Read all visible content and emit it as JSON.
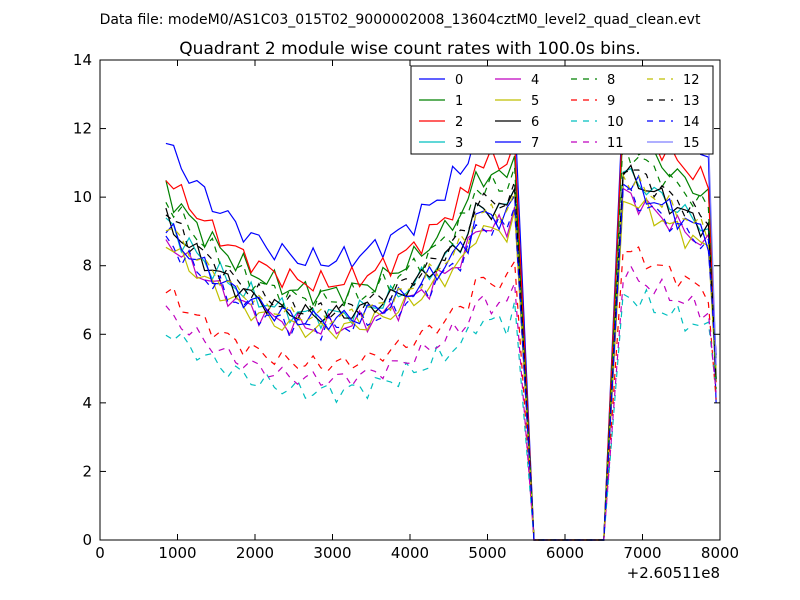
{
  "chart_data": {
    "type": "line",
    "suptitle": "Data file: modeM0/AS1C03_015T02_9000002008_13604cztM0_level2_quad_clean.evt",
    "title": "Quadrant 2 module wise count rates with 100.0s bins.",
    "xlabel": "",
    "ylabel": "",
    "x_offset_label": "+2.60511e8",
    "xlim": [
      0,
      8000
    ],
    "ylim": [
      0,
      14
    ],
    "xticks": [
      0,
      1000,
      2000,
      3000,
      4000,
      5000,
      6000,
      7000,
      8000
    ],
    "yticks": [
      0,
      2,
      4,
      6,
      8,
      10,
      12,
      14
    ],
    "legend_placement": "top-right",
    "legend_columns": 4,
    "segments": [
      {
        "x0": 850,
        "step": 100,
        "count": 46
      },
      {
        "x0": 6750,
        "step": 100,
        "count": 13
      }
    ],
    "gap": {
      "x": [
        5550,
        6550
      ],
      "value": 0
    },
    "series": [
      {
        "name": "0",
        "color": "#0000ff",
        "dash": "solid",
        "base": 11.3,
        "edge": 1.0,
        "scale": 1.0,
        "amp": 0.45,
        "phase": 0.0
      },
      {
        "name": "1",
        "color": "#008000",
        "dash": "solid",
        "base": 10.0,
        "edge": 1.0,
        "scale": 1.0,
        "amp": 0.4,
        "phase": 1.3
      },
      {
        "name": "2",
        "color": "#ff0000",
        "dash": "solid",
        "base": 10.4,
        "edge": 1.1,
        "scale": 1.0,
        "amp": 0.4,
        "phase": 2.1
      },
      {
        "name": "3",
        "color": "#00bfbf",
        "dash": "solid",
        "base": 9.1,
        "edge": 1.0,
        "scale": 1.0,
        "amp": 0.4,
        "phase": 3.7
      },
      {
        "name": "4",
        "color": "#bf00bf",
        "dash": "solid",
        "base": 8.6,
        "edge": 1.0,
        "scale": 1.0,
        "amp": 0.4,
        "phase": 4.4
      },
      {
        "name": "5",
        "color": "#bfbf00",
        "dash": "solid",
        "base": 8.5,
        "edge": 1.0,
        "scale": 1.0,
        "amp": 0.4,
        "phase": 5.2
      },
      {
        "name": "6",
        "color": "#000000",
        "dash": "solid",
        "base": 9.1,
        "edge": 1.1,
        "scale": 1.0,
        "amp": 0.4,
        "phase": 0.7
      },
      {
        "name": "7",
        "color": "#0000ff",
        "dash": "solid",
        "base": 8.9,
        "edge": 1.0,
        "scale": 1.0,
        "amp": 0.45,
        "phase": 2.9
      },
      {
        "name": "8",
        "color": "#008000",
        "dash": "dashed",
        "base": 9.7,
        "edge": 1.0,
        "scale": 1.0,
        "amp": 0.4,
        "phase": 1.9
      },
      {
        "name": "9",
        "color": "#ff0000",
        "dash": "dashed",
        "base": 7.1,
        "edge": 1.0,
        "scale": 0.72,
        "amp": 0.35,
        "phase": 3.1
      },
      {
        "name": "10",
        "color": "#00bfbf",
        "dash": "dashed",
        "base": 6.0,
        "edge": 0.9,
        "scale": 0.6,
        "amp": 0.4,
        "phase": 4.9
      },
      {
        "name": "11",
        "color": "#bf00bf",
        "dash": "dashed",
        "base": 6.5,
        "edge": 1.0,
        "scale": 0.66,
        "amp": 0.35,
        "phase": 0.3
      },
      {
        "name": "12",
        "color": "#bfbf00",
        "dash": "dashed",
        "base": 9.0,
        "edge": 1.0,
        "scale": 1.0,
        "amp": 0.35,
        "phase": 2.5
      },
      {
        "name": "13",
        "color": "#000000",
        "dash": "dashed",
        "base": 9.3,
        "edge": 1.0,
        "scale": 1.0,
        "amp": 0.4,
        "phase": 5.6
      },
      {
        "name": "14",
        "color": "#0000ff",
        "dash": "dashed",
        "base": 8.6,
        "edge": 1.0,
        "scale": 1.0,
        "amp": 0.4,
        "phase": 4.0
      },
      {
        "name": "15",
        "color": "#7f7fff",
        "dash": "solid",
        "base": 12.3,
        "edge": 0.0,
        "scale": 1.1,
        "amp": 0.3,
        "phase": 1.1,
        "only_second": true
      }
    ]
  }
}
